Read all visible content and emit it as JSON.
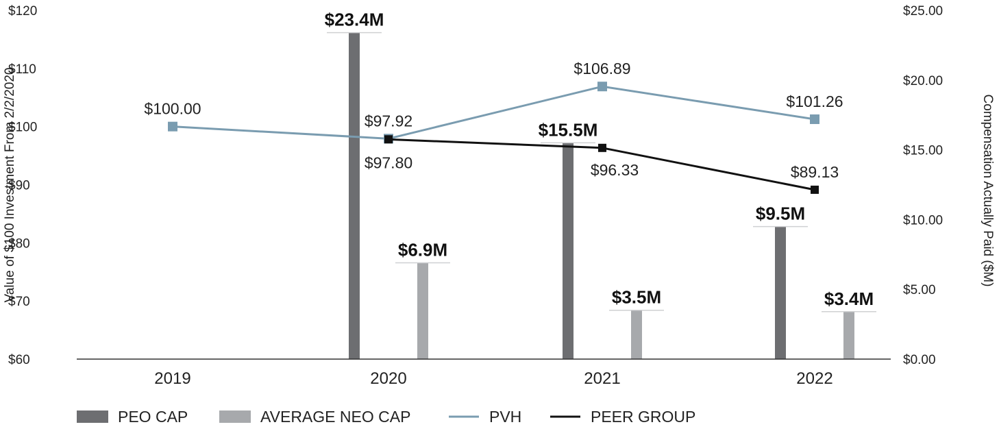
{
  "chart_data": {
    "type": "bar+line",
    "categories": [
      "2019",
      "2020",
      "2021",
      "2022"
    ],
    "left_axis": {
      "label": "Value of $100 Investment From 2/2/2020",
      "ylim": [
        60,
        120
      ],
      "ticks": [
        60,
        70,
        80,
        90,
        100,
        110,
        120
      ],
      "tick_labels": [
        "$60",
        "$70",
        "$80",
        "$90",
        "$100",
        "$110",
        "$120"
      ]
    },
    "right_axis": {
      "label": "Compensation Actually Paid ($M)",
      "ylim": [
        0,
        25
      ],
      "ticks": [
        0,
        5,
        10,
        15,
        20,
        25
      ],
      "tick_labels": [
        "$0.00",
        "$5.00",
        "$10.00",
        "$15.00",
        "$20.00",
        "$25.00"
      ]
    },
    "bar_series": [
      {
        "name": "PEO CAP",
        "color": "#6d6e71",
        "values": [
          null,
          23.4,
          15.5,
          9.5
        ],
        "labels": [
          "",
          "$23.4M",
          "$15.5M",
          "$9.5M"
        ]
      },
      {
        "name": "AVERAGE NEO CAP",
        "color": "#a7a9ac",
        "values": [
          null,
          6.9,
          3.5,
          3.4
        ],
        "labels": [
          "",
          "$6.9M",
          "$3.5M",
          "$3.4M"
        ]
      }
    ],
    "line_series": [
      {
        "name": "PVH",
        "color": "#7a9cb0",
        "values": [
          100.0,
          97.92,
          106.89,
          101.26
        ],
        "labels": [
          "$100.00",
          "$97.92",
          "$106.89",
          "$101.26"
        ]
      },
      {
        "name": "PEER GROUP",
        "color": "#111111",
        "values": [
          null,
          97.8,
          96.33,
          89.13
        ],
        "labels": [
          "",
          "$97.80",
          "$96.33",
          "$89.13"
        ]
      }
    ],
    "legend": [
      "PEO CAP",
      "AVERAGE NEO CAP",
      "PVH",
      "PEER GROUP"
    ],
    "legend_position": "bottom-left"
  }
}
